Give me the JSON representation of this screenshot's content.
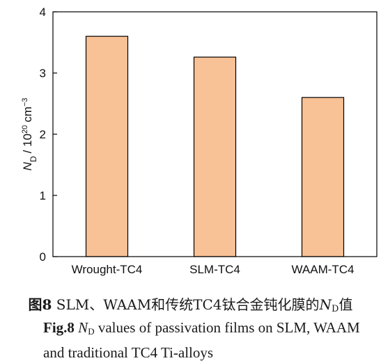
{
  "chart_data": {
    "type": "bar",
    "categories": [
      "Wrought-TC4",
      "SLM-TC4",
      "WAAM-TC4"
    ],
    "values": [
      3.6,
      3.26,
      2.6
    ],
    "ylim": [
      0,
      4
    ],
    "yticks": [
      "0",
      "1",
      "2",
      "3",
      "4"
    ],
    "ylabel": {
      "symbol": "N",
      "subscript": "D",
      "unit": "/ 10",
      "exponent": "20",
      "unit2": "cm",
      "unit2_exponent": "−3"
    },
    "bar_color": "#f8c196",
    "bar_edge_color": "#000000"
  },
  "caption": {
    "cn": {
      "prefix": "图8",
      "text": "SLM、WAAM和传统TC4钛合金钝化膜的",
      "symbol": "N",
      "subscript": "D",
      "suffix": "值"
    },
    "en": {
      "prefix": "Fig.8",
      "symbol": "N",
      "subscript": "D",
      "text": "values of passivation films on SLM, WAAM and traditional TC4 Ti-alloys"
    }
  }
}
